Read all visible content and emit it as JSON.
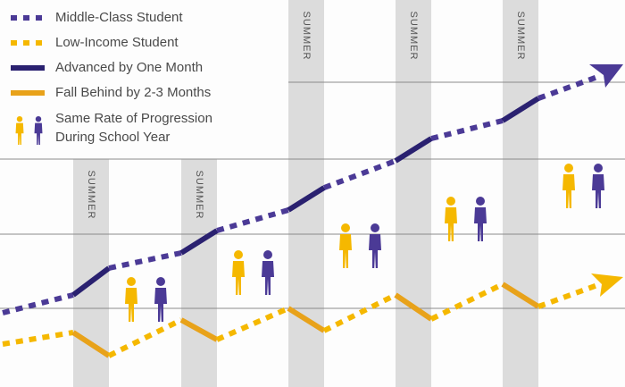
{
  "legend": {
    "items": [
      "Middle-Class Student",
      "Low-Income Student",
      "Advanced by One Month",
      "Fall Behind by 2-3 Months"
    ],
    "figures_label": [
      "Same Rate of Progression",
      "During School Year"
    ]
  },
  "summer_bands": [
    "SUMMER",
    "SUMMER",
    "SUMMER",
    "SUMMER",
    "SUMMER"
  ]
}
